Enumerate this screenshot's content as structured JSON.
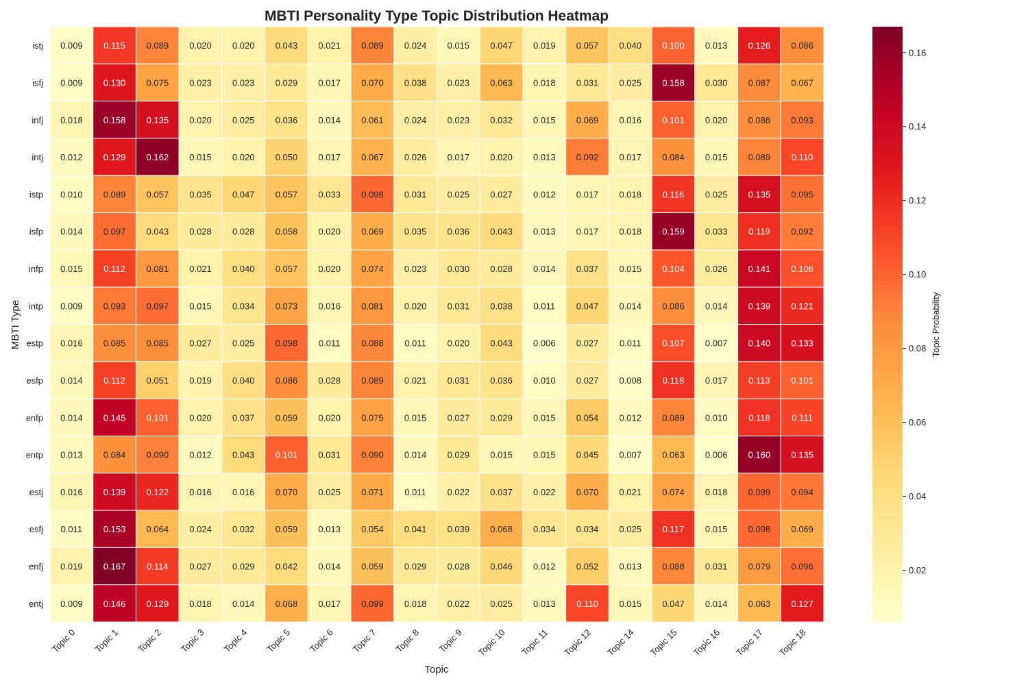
{
  "chart_data": {
    "type": "heatmap",
    "title": "MBTI Personality Type Topic Distribution Heatmap",
    "xlabel": "Topic",
    "ylabel": "MBTI Type",
    "colorbar_label": "Topic Probability",
    "colormap": "YlOrRd",
    "vmin": 0.006,
    "vmax": 0.167,
    "colorbar_ticks": [
      0.02,
      0.04,
      0.06,
      0.08,
      0.1,
      0.12,
      0.14,
      0.16
    ],
    "colorbar_tick_labels": [
      "0.02",
      "0.04",
      "0.06",
      "0.08",
      "0.10",
      "0.12",
      "0.14",
      "0.16"
    ],
    "columns": [
      "Topic 0",
      "Topic 1",
      "Topic 2",
      "Topic 3",
      "Topic 4",
      "Topic 5",
      "Topic 6",
      "Topic 7",
      "Topic 8",
      "Topic 9",
      "Topic 10",
      "Topic 11",
      "Topic 12",
      "Topic 14",
      "Topic 15",
      "Topic 16",
      "Topic 17",
      "Topic 18"
    ],
    "rows": [
      "istj",
      "isfj",
      "infj",
      "intj",
      "istp",
      "isfp",
      "infp",
      "intp",
      "estp",
      "esfp",
      "enfp",
      "entp",
      "estj",
      "esfj",
      "enfj",
      "entj"
    ],
    "values": [
      [
        0.009,
        0.115,
        0.089,
        0.02,
        0.02,
        0.043,
        0.021,
        0.089,
        0.024,
        0.015,
        0.047,
        0.019,
        0.057,
        0.04,
        0.1,
        0.013,
        0.126,
        0.086
      ],
      [
        0.009,
        0.13,
        0.075,
        0.023,
        0.023,
        0.029,
        0.017,
        0.07,
        0.038,
        0.023,
        0.063,
        0.018,
        0.031,
        0.025,
        0.158,
        0.03,
        0.087,
        0.067
      ],
      [
        0.018,
        0.158,
        0.135,
        0.02,
        0.025,
        0.036,
        0.014,
        0.061,
        0.024,
        0.023,
        0.032,
        0.015,
        0.069,
        0.016,
        0.101,
        0.02,
        0.086,
        0.093
      ],
      [
        0.012,
        0.129,
        0.162,
        0.015,
        0.02,
        0.05,
        0.017,
        0.067,
        0.026,
        0.017,
        0.02,
        0.013,
        0.092,
        0.017,
        0.084,
        0.015,
        0.089,
        0.11
      ],
      [
        0.01,
        0.089,
        0.057,
        0.035,
        0.047,
        0.057,
        0.033,
        0.098,
        0.031,
        0.025,
        0.027,
        0.012,
        0.017,
        0.018,
        0.116,
        0.025,
        0.135,
        0.095
      ],
      [
        0.014,
        0.097,
        0.043,
        0.028,
        0.028,
        0.058,
        0.02,
        0.069,
        0.035,
        0.036,
        0.043,
        0.013,
        0.017,
        0.018,
        0.159,
        0.033,
        0.119,
        0.092
      ],
      [
        0.015,
        0.112,
        0.081,
        0.021,
        0.04,
        0.057,
        0.02,
        0.074,
        0.023,
        0.03,
        0.028,
        0.014,
        0.037,
        0.015,
        0.104,
        0.026,
        0.141,
        0.106
      ],
      [
        0.009,
        0.093,
        0.097,
        0.015,
        0.034,
        0.073,
        0.016,
        0.081,
        0.02,
        0.031,
        0.038,
        0.011,
        0.047,
        0.014,
        0.086,
        0.014,
        0.139,
        0.121
      ],
      [
        0.016,
        0.085,
        0.085,
        0.027,
        0.025,
        0.098,
        0.011,
        0.088,
        0.011,
        0.02,
        0.043,
        0.006,
        0.027,
        0.011,
        0.107,
        0.007,
        0.14,
        0.133
      ],
      [
        0.014,
        0.112,
        0.051,
        0.019,
        0.04,
        0.086,
        0.028,
        0.089,
        0.021,
        0.031,
        0.036,
        0.01,
        0.027,
        0.008,
        0.118,
        0.017,
        0.113,
        0.101
      ],
      [
        0.014,
        0.145,
        0.101,
        0.02,
        0.037,
        0.059,
        0.02,
        0.075,
        0.015,
        0.027,
        0.029,
        0.015,
        0.054,
        0.012,
        0.089,
        0.01,
        0.118,
        0.111
      ],
      [
        0.013,
        0.084,
        0.09,
        0.012,
        0.043,
        0.101,
        0.031,
        0.09,
        0.014,
        0.029,
        0.015,
        0.015,
        0.045,
        0.007,
        0.063,
        0.006,
        0.16,
        0.135
      ],
      [
        0.016,
        0.139,
        0.122,
        0.016,
        0.016,
        0.07,
        0.025,
        0.071,
        0.011,
        0.022,
        0.037,
        0.022,
        0.07,
        0.021,
        0.074,
        0.018,
        0.099,
        0.094
      ],
      [
        0.011,
        0.153,
        0.064,
        0.024,
        0.032,
        0.059,
        0.013,
        0.054,
        0.041,
        0.039,
        0.068,
        0.034,
        0.034,
        0.025,
        0.117,
        0.015,
        0.098,
        0.069
      ],
      [
        0.019,
        0.167,
        0.114,
        0.027,
        0.029,
        0.042,
        0.014,
        0.059,
        0.029,
        0.028,
        0.046,
        0.012,
        0.052,
        0.013,
        0.088,
        0.031,
        0.079,
        0.096
      ],
      [
        0.009,
        0.146,
        0.129,
        0.018,
        0.014,
        0.068,
        0.017,
        0.099,
        0.018,
        0.022,
        0.025,
        0.013,
        0.11,
        0.015,
        0.047,
        0.014,
        0.063,
        0.127
      ]
    ],
    "annotation_format": "0.000",
    "grid": false,
    "legend": "colorbar-right"
  }
}
